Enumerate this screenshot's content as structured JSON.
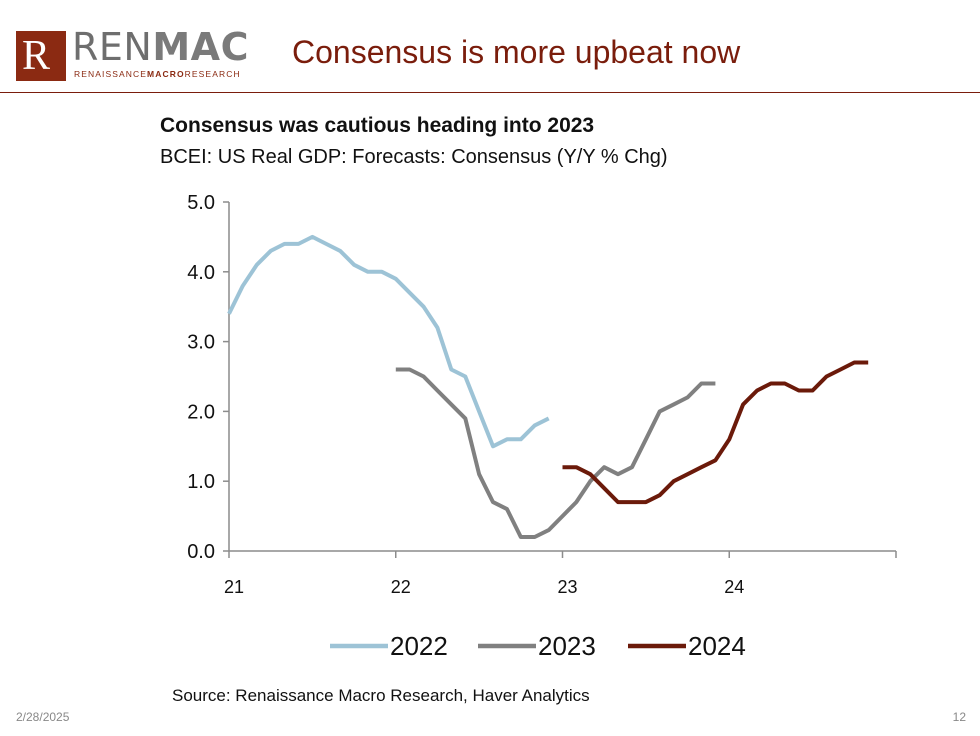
{
  "logo": {
    "letter": "R",
    "word_plain": "REN",
    "word_bold": "MAC",
    "sub_plain": "RENAISSANCE",
    "sub_bold": "MACRO",
    "sub_end": "RESEARCH"
  },
  "slide": {
    "title": "Consensus is more upbeat now",
    "date": "2/28/2025",
    "page": "12"
  },
  "source": "Source: Renaissance Macro Research, Haver Analytics",
  "chart_data": {
    "type": "line",
    "title": "Consensus was cautious heading into 2023",
    "subtitle": "BCEI: US Real GDP: Forecasts: Consensus (Y/Y % Chg)",
    "xlabel": "",
    "ylabel": "",
    "xlim": [
      21,
      25
    ],
    "ylim": [
      0,
      5
    ],
    "x_ticks": [
      21,
      22,
      23,
      24
    ],
    "x_tick_labels": [
      "21",
      "22",
      "23",
      "24"
    ],
    "y_ticks": [
      0,
      1,
      2,
      3,
      4,
      5
    ],
    "y_tick_labels": [
      "0.0",
      "1.0",
      "2.0",
      "3.0",
      "4.0",
      "5.0"
    ],
    "legend_position": "bottom",
    "series": [
      {
        "name": "2022",
        "color": "#9dc3d6",
        "x": [
          21.0,
          21.083,
          21.167,
          21.25,
          21.333,
          21.417,
          21.5,
          21.583,
          21.667,
          21.75,
          21.833,
          21.917,
          22.0,
          22.083,
          22.167,
          22.25,
          22.333,
          22.417,
          22.5,
          22.583,
          22.667,
          22.75,
          22.833,
          22.917
        ],
        "y": [
          3.4,
          3.8,
          4.1,
          4.3,
          4.4,
          4.4,
          4.5,
          4.4,
          4.3,
          4.1,
          4.0,
          4.0,
          3.9,
          3.7,
          3.5,
          3.2,
          2.6,
          2.5,
          2.0,
          1.5,
          1.6,
          1.6,
          1.8,
          1.9
        ]
      },
      {
        "name": "2023",
        "color": "#808080",
        "x": [
          22.0,
          22.083,
          22.167,
          22.25,
          22.333,
          22.417,
          22.5,
          22.583,
          22.667,
          22.75,
          22.833,
          22.917,
          23.0,
          23.083,
          23.167,
          23.25,
          23.333,
          23.417,
          23.5,
          23.583,
          23.667,
          23.75,
          23.833,
          23.917
        ],
        "y": [
          2.6,
          2.6,
          2.5,
          2.3,
          2.1,
          1.9,
          1.1,
          0.7,
          0.6,
          0.2,
          0.2,
          0.3,
          0.5,
          0.7,
          1.0,
          1.2,
          1.1,
          1.2,
          1.6,
          2.0,
          2.1,
          2.2,
          2.4,
          2.4
        ]
      },
      {
        "name": "2024",
        "color": "#6b1a0a",
        "x": [
          23.0,
          23.083,
          23.167,
          23.25,
          23.333,
          23.417,
          23.5,
          23.583,
          23.667,
          23.75,
          23.833,
          23.917,
          24.0,
          24.083,
          24.167,
          24.25,
          24.333,
          24.417,
          24.5,
          24.583,
          24.667,
          24.75,
          24.833
        ],
        "y": [
          1.2,
          1.2,
          1.1,
          0.9,
          0.7,
          0.7,
          0.7,
          0.8,
          1.0,
          1.1,
          1.2,
          1.3,
          1.6,
          2.1,
          2.3,
          2.4,
          2.4,
          2.3,
          2.3,
          2.5,
          2.6,
          2.7,
          2.7
        ]
      }
    ]
  }
}
